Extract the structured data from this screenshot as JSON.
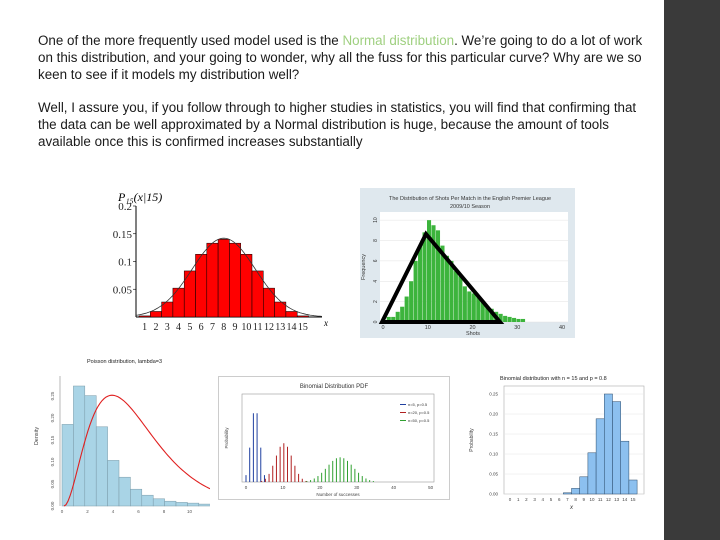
{
  "paragraph1": {
    "before": "One of the more frequently used model used is the ",
    "highlight": "Normal distribution",
    "after": ". We’re going to do a lot of work on this distribution, and your going to wonder, why all the fuss for this particular curve? Why are we so keen to see if it models my distribution well?"
  },
  "paragraph2": "Well, I assure you, if you follow through to higher studies in statistics, you will find that confirming that the data can be well approximated by a Normal distribution is huge, because the amount of tools available once this is confirmed increases substantially",
  "colors": {
    "highlight": "#9fd080",
    "sidebar": "#3a3a3a"
  },
  "figures": [
    {
      "type": "bar",
      "title": "P₁₅(x|15)",
      "y_ticks": [
        "0.2",
        "0.15",
        "0.1",
        "0.05"
      ],
      "x_ticks": [
        "1",
        "2",
        "3",
        "4",
        "5",
        "6",
        "7",
        "8",
        "9",
        "10",
        "11",
        "12",
        "13",
        "14",
        "15"
      ],
      "axis_label": "x",
      "values": [
        0.002,
        0.01,
        0.027,
        0.052,
        0.083,
        0.113,
        0.133,
        0.14,
        0.133,
        0.113,
        0.083,
        0.052,
        0.027,
        0.01,
        0.002
      ],
      "ylim": [
        0,
        0.2
      ],
      "color": "#ff0000"
    },
    {
      "type": "bar",
      "title": "The Distribution of Shots Per Match in the English Premier League",
      "subtitle": "2009/10 Season",
      "xlabel": "Shots",
      "ylabel": "Frequency",
      "x_ticks": [
        "0",
        "10",
        "20",
        "30",
        "40"
      ],
      "y_ticks": [
        "0",
        "2",
        "4",
        "6",
        "8",
        "10"
      ],
      "color": "#3cb43c"
    },
    {
      "type": "bar",
      "title": "Poisson distribution, lambda=3",
      "ylabel": "Density",
      "color": "#a9d4e6"
    },
    {
      "type": "bar",
      "title": "Binomial Distribution PDF",
      "legend": [
        "n=5, p=0.5",
        "n=20, p=0.5",
        "n=50, p=0.5"
      ],
      "xlabel": "Number of successes",
      "ylabel": "Probability",
      "x_ticks": [
        "0",
        "10",
        "20",
        "30",
        "40",
        "50"
      ]
    },
    {
      "type": "bar",
      "title": "Binomial distribution with n = 15 and p = 0.8",
      "ylabel": "Probability",
      "axis_label": "x",
      "y_ticks": [
        "0.25",
        "0.20",
        "0.15",
        "0.10",
        "0.05",
        "0.00"
      ],
      "x_ticks": [
        "0",
        "1",
        "2",
        "3",
        "4",
        "5",
        "6",
        "7",
        "8",
        "9",
        "10",
        "11",
        "12",
        "13",
        "14",
        "15"
      ],
      "values": [
        0,
        0,
        0,
        0,
        0,
        0,
        0,
        0.003,
        0.014,
        0.043,
        0.103,
        0.188,
        0.25,
        0.231,
        0.132,
        0.035
      ],
      "color": "#8cc0ef"
    }
  ]
}
